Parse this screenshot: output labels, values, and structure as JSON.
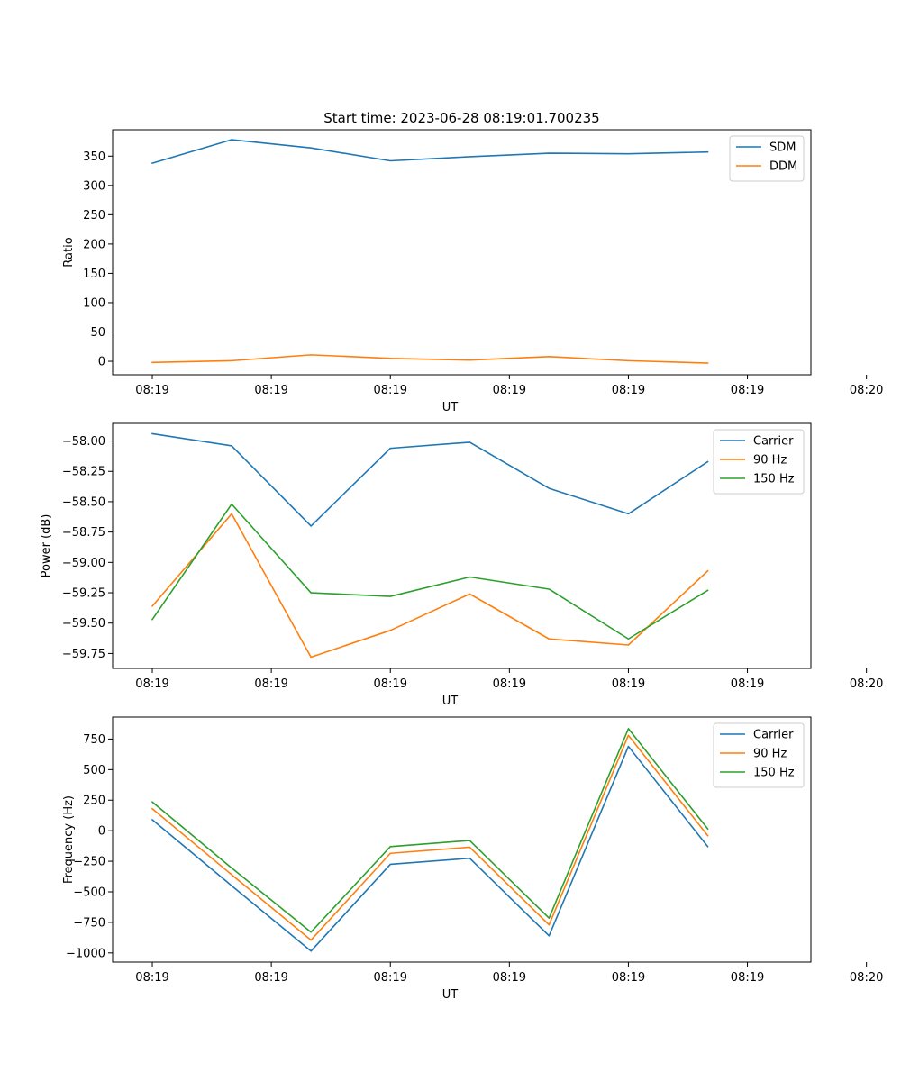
{
  "figure": {
    "title": "Start time: 2023-06-28 08:19:01.700235"
  },
  "chart_data": [
    {
      "type": "line",
      "title": "Start time: 2023-06-28 08:19:01.700235",
      "xlabel": "UT",
      "ylabel": "Ratio",
      "x": [
        "08:19:01.7",
        "08:19:01.8",
        "08:19:01.9",
        "08:19:02.0",
        "08:19:02.1",
        "08:19:02.2",
        "08:19:02.3",
        "08:19:02.4"
      ],
      "xlim": [
        -0.05,
        0.83
      ],
      "xticks": [
        0.0,
        0.15,
        0.3,
        0.45,
        0.6,
        0.75,
        0.9
      ],
      "xtick_labels": [
        "08:19",
        "08:19",
        "08:19",
        "08:19",
        "08:19",
        "08:19",
        "08:20"
      ],
      "ylim": [
        -23,
        395
      ],
      "yticks": [
        0,
        50,
        100,
        150,
        200,
        250,
        300,
        350
      ],
      "ytick_labels": [
        "0",
        "50",
        "100",
        "150",
        "200",
        "250",
        "300",
        "350"
      ],
      "legend": "top-right",
      "grid": false,
      "series": [
        {
          "name": "SDM",
          "color": "#1f77b4",
          "values": [
            338,
            378,
            364,
            342,
            349,
            355,
            354,
            357
          ]
        },
        {
          "name": "DDM",
          "color": "#ff7f0e",
          "values": [
            -2,
            1,
            11,
            5,
            2,
            8,
            1,
            -3
          ]
        }
      ]
    },
    {
      "type": "line",
      "xlabel": "UT",
      "ylabel": "Power (dB)",
      "x": [
        "08:19:01.7",
        "08:19:01.8",
        "08:19:01.9",
        "08:19:02.0",
        "08:19:02.1",
        "08:19:02.2",
        "08:19:02.3",
        "08:19:02.4"
      ],
      "xlim": [
        -0.05,
        0.83
      ],
      "xticks": [
        0.0,
        0.15,
        0.3,
        0.45,
        0.6,
        0.75,
        0.9
      ],
      "xtick_labels": [
        "08:19",
        "08:19",
        "08:19",
        "08:19",
        "08:19",
        "08:19",
        "08:20"
      ],
      "ylim": [
        -59.873,
        -57.855
      ],
      "yticks": [
        -59.75,
        -59.5,
        -59.25,
        -59.0,
        -58.75,
        -58.5,
        -58.25,
        -58.0
      ],
      "ytick_labels": [
        "−59.75",
        "−59.50",
        "−59.25",
        "−59.00",
        "−58.75",
        "−58.50",
        "−58.25",
        "−58.00"
      ],
      "legend": "top-right",
      "grid": false,
      "series": [
        {
          "name": "Carrier",
          "color": "#1f77b4",
          "values": [
            -57.94,
            -58.04,
            -58.7,
            -58.06,
            -58.01,
            -58.39,
            -58.6,
            -58.17
          ]
        },
        {
          "name": "90 Hz",
          "color": "#ff7f0e",
          "values": [
            -59.36,
            -58.6,
            -59.78,
            -59.56,
            -59.26,
            -59.63,
            -59.68,
            -59.07
          ]
        },
        {
          "name": "150 Hz",
          "color": "#2ca02c",
          "values": [
            -59.47,
            -58.52,
            -59.25,
            -59.28,
            -59.12,
            -59.22,
            -59.63,
            -59.23
          ]
        }
      ]
    },
    {
      "type": "line",
      "xlabel": "UT",
      "ylabel": "Frequency (Hz)",
      "x": [
        "08:19:01.7",
        "08:19:01.8",
        "08:19:01.9",
        "08:19:02.0",
        "08:19:02.1",
        "08:19:02.2",
        "08:19:02.3",
        "08:19:02.4"
      ],
      "xlim": [
        -0.05,
        0.83
      ],
      "xticks": [
        0.0,
        0.15,
        0.3,
        0.45,
        0.6,
        0.75,
        0.9
      ],
      "xtick_labels": [
        "08:19",
        "08:19",
        "08:19",
        "08:19",
        "08:19",
        "08:19",
        "08:20"
      ],
      "ylim": [
        -1075,
        930
      ],
      "yticks": [
        -1000,
        -750,
        -500,
        -250,
        0,
        250,
        500,
        750
      ],
      "ytick_labels": [
        "−1000",
        "−750",
        "−500",
        "−250",
        "0",
        "250",
        "500",
        "750"
      ],
      "legend": "top-right",
      "grid": false,
      "series": [
        {
          "name": "Carrier",
          "color": "#1f77b4",
          "values": [
            90,
            -450,
            -985,
            -275,
            -225,
            -860,
            690,
            -130
          ]
        },
        {
          "name": "90 Hz",
          "color": "#ff7f0e",
          "values": [
            180,
            -360,
            -895,
            -185,
            -135,
            -770,
            780,
            -40
          ]
        },
        {
          "name": "150 Hz",
          "color": "#2ca02c",
          "values": [
            235,
            -305,
            -830,
            -130,
            -80,
            -715,
            835,
            15
          ]
        }
      ]
    }
  ]
}
